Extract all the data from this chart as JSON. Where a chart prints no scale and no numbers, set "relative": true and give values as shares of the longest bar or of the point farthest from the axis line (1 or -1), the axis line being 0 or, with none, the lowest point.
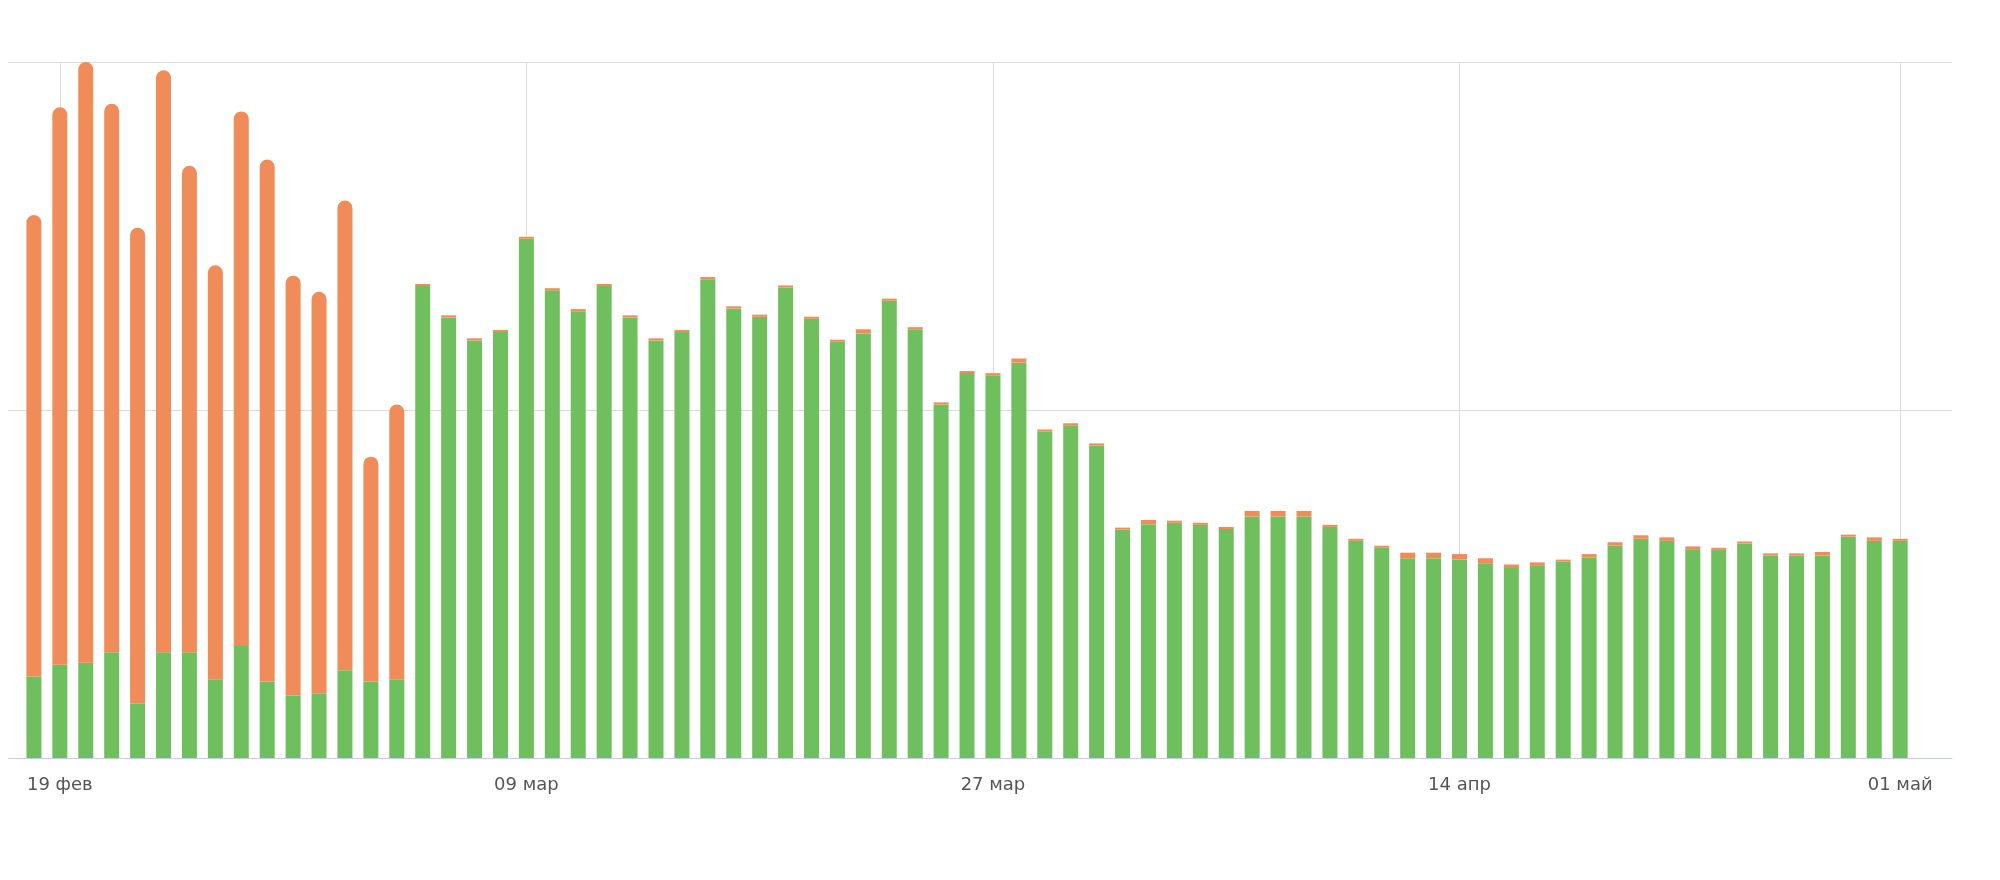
{
  "chart_data": {
    "type": "bar",
    "relative": true,
    "stacked": true,
    "grid": true,
    "x": [
      "--02-18",
      "--02-19",
      "--02-20",
      "--02-21",
      "--02-22",
      "--02-23",
      "--02-24",
      "--02-25",
      "--02-26",
      "--02-27",
      "--02-28",
      "--03-01",
      "--03-02",
      "--03-03",
      "--03-04",
      "--03-05",
      "--03-06",
      "--03-07",
      "--03-08",
      "--03-09",
      "--03-10",
      "--03-11",
      "--03-12",
      "--03-13",
      "--03-14",
      "--03-15",
      "--03-16",
      "--03-17",
      "--03-18",
      "--03-19",
      "--03-20",
      "--03-21",
      "--03-22",
      "--03-23",
      "--03-24",
      "--03-25",
      "--03-26",
      "--03-27",
      "--03-28",
      "--03-29",
      "--03-30",
      "--03-31",
      "--04-01",
      "--04-02",
      "--04-03",
      "--04-04",
      "--04-05",
      "--04-06",
      "--04-07",
      "--04-08",
      "--04-09",
      "--04-10",
      "--04-11",
      "--04-12",
      "--04-13",
      "--04-14",
      "--04-15",
      "--04-16",
      "--04-17",
      "--04-18",
      "--04-19",
      "--04-20",
      "--04-21",
      "--04-22",
      "--04-23",
      "--04-24",
      "--04-25",
      "--04-26",
      "--04-27",
      "--04-28",
      "--04-29",
      "--04-30",
      "--05-01"
    ],
    "xlim": [
      "--02-17",
      "--05-03"
    ],
    "xticks": [
      {
        "value": "--02-19",
        "label": "19 фев"
      },
      {
        "value": "--03-09",
        "label": "09 мар"
      },
      {
        "value": "--03-27",
        "label": "27 мар"
      },
      {
        "value": "--04-14",
        "label": "14 апр"
      },
      {
        "value": "--05-01",
        "label": "01 май"
      }
    ],
    "series": [
      {
        "color": "#70bf5e",
        "values": [
          0.117,
          0.134,
          0.137,
          0.152,
          0.078,
          0.152,
          0.152,
          0.113,
          0.161,
          0.11,
          0.09,
          0.093,
          0.126,
          0.11,
          0.113,
          0.678,
          0.633,
          0.6,
          0.612,
          0.746,
          0.672,
          0.642,
          0.678,
          0.633,
          0.6,
          0.612,
          0.688,
          0.646,
          0.634,
          0.676,
          0.631,
          0.598,
          0.61,
          0.657,
          0.616,
          0.508,
          0.553,
          0.55,
          0.568,
          0.469,
          0.478,
          0.449,
          0.328,
          0.336,
          0.338,
          0.335,
          0.329,
          0.347,
          0.347,
          0.347,
          0.332,
          0.312,
          0.302,
          0.287,
          0.287,
          0.285,
          0.279,
          0.273,
          0.276,
          0.282,
          0.288,
          0.305,
          0.315,
          0.312,
          0.299,
          0.299,
          0.308,
          0.291,
          0.291,
          0.291,
          0.318,
          0.312,
          0.312
        ]
      },
      {
        "color": "#f08c59",
        "values": [
          0.663,
          0.801,
          0.863,
          0.788,
          0.684,
          0.836,
          0.699,
          0.595,
          0.768,
          0.75,
          0.603,
          0.577,
          0.675,
          0.323,
          0.395,
          0.003,
          0.003,
          0.003,
          0.003,
          0.003,
          0.003,
          0.003,
          0.003,
          0.003,
          0.003,
          0.003,
          0.003,
          0.003,
          0.003,
          0.003,
          0.003,
          0.003,
          0.006,
          0.003,
          0.003,
          0.003,
          0.003,
          0.003,
          0.006,
          0.003,
          0.003,
          0.003,
          0.003,
          0.006,
          0.003,
          0.003,
          0.003,
          0.008,
          0.008,
          0.008,
          0.003,
          0.003,
          0.003,
          0.008,
          0.008,
          0.008,
          0.008,
          0.005,
          0.005,
          0.003,
          0.005,
          0.005,
          0.005,
          0.005,
          0.005,
          0.003,
          0.003,
          0.003,
          0.003,
          0.005,
          0.003,
          0.005,
          0.003
        ]
      }
    ]
  }
}
